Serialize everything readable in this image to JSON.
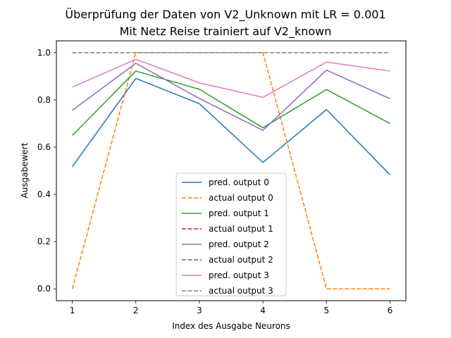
{
  "chart_data": {
    "type": "line",
    "title_line1": "Überprüfung der Daten von V2_Unknown mit LR = 0.001",
    "title_line2": "Mit Netz Reise trainiert auf V2_known",
    "xlabel": "Index des Ausgabe Neurons",
    "ylabel": "Ausgabewert",
    "x": [
      1,
      2,
      3,
      4,
      5,
      6
    ],
    "xlim": [
      0.75,
      6.25
    ],
    "ylim": [
      -0.05,
      1.05
    ],
    "xticks": [
      "1",
      "2",
      "3",
      "4",
      "5",
      "6"
    ],
    "yticks": [
      "0.0",
      "0.2",
      "0.4",
      "0.6",
      "0.8",
      "1.0"
    ],
    "grid": false,
    "legend_position": "lower-center",
    "series": [
      {
        "name": "pred. output 0",
        "color": "#1f77b4",
        "style": "solid",
        "values": [
          0.517,
          0.891,
          0.784,
          0.535,
          0.759,
          0.483
        ]
      },
      {
        "name": "actual output 0",
        "color": "#ff7f0e",
        "style": "dashed",
        "values": [
          0.0,
          1.0,
          1.0,
          1.0,
          0.0,
          0.0
        ]
      },
      {
        "name": "pred. output 1",
        "color": "#2ca02c",
        "style": "solid",
        "values": [
          0.649,
          0.922,
          0.845,
          0.682,
          0.844,
          0.7
        ]
      },
      {
        "name": "actual output 1",
        "color": "#d62728",
        "style": "dashed",
        "values": [
          1.0,
          1.0,
          1.0,
          1.0,
          1.0,
          1.0
        ]
      },
      {
        "name": "pred. output 2",
        "color": "#9467bd",
        "style": "solid",
        "values": [
          0.756,
          0.955,
          0.806,
          0.671,
          0.926,
          0.805
        ]
      },
      {
        "name": "actual output 2",
        "color": "#8c564b",
        "style": "dashed",
        "values": [
          1.0,
          1.0,
          1.0,
          1.0,
          1.0,
          1.0
        ]
      },
      {
        "name": "pred. output 3",
        "color": "#e377c2",
        "style": "solid",
        "values": [
          0.854,
          0.972,
          0.872,
          0.811,
          0.96,
          0.922
        ]
      },
      {
        "name": "actual output 3",
        "color": "#7f7f7f",
        "style": "dashed",
        "values": [
          1.0,
          1.0,
          1.0,
          1.0,
          1.0,
          1.0
        ]
      }
    ]
  }
}
